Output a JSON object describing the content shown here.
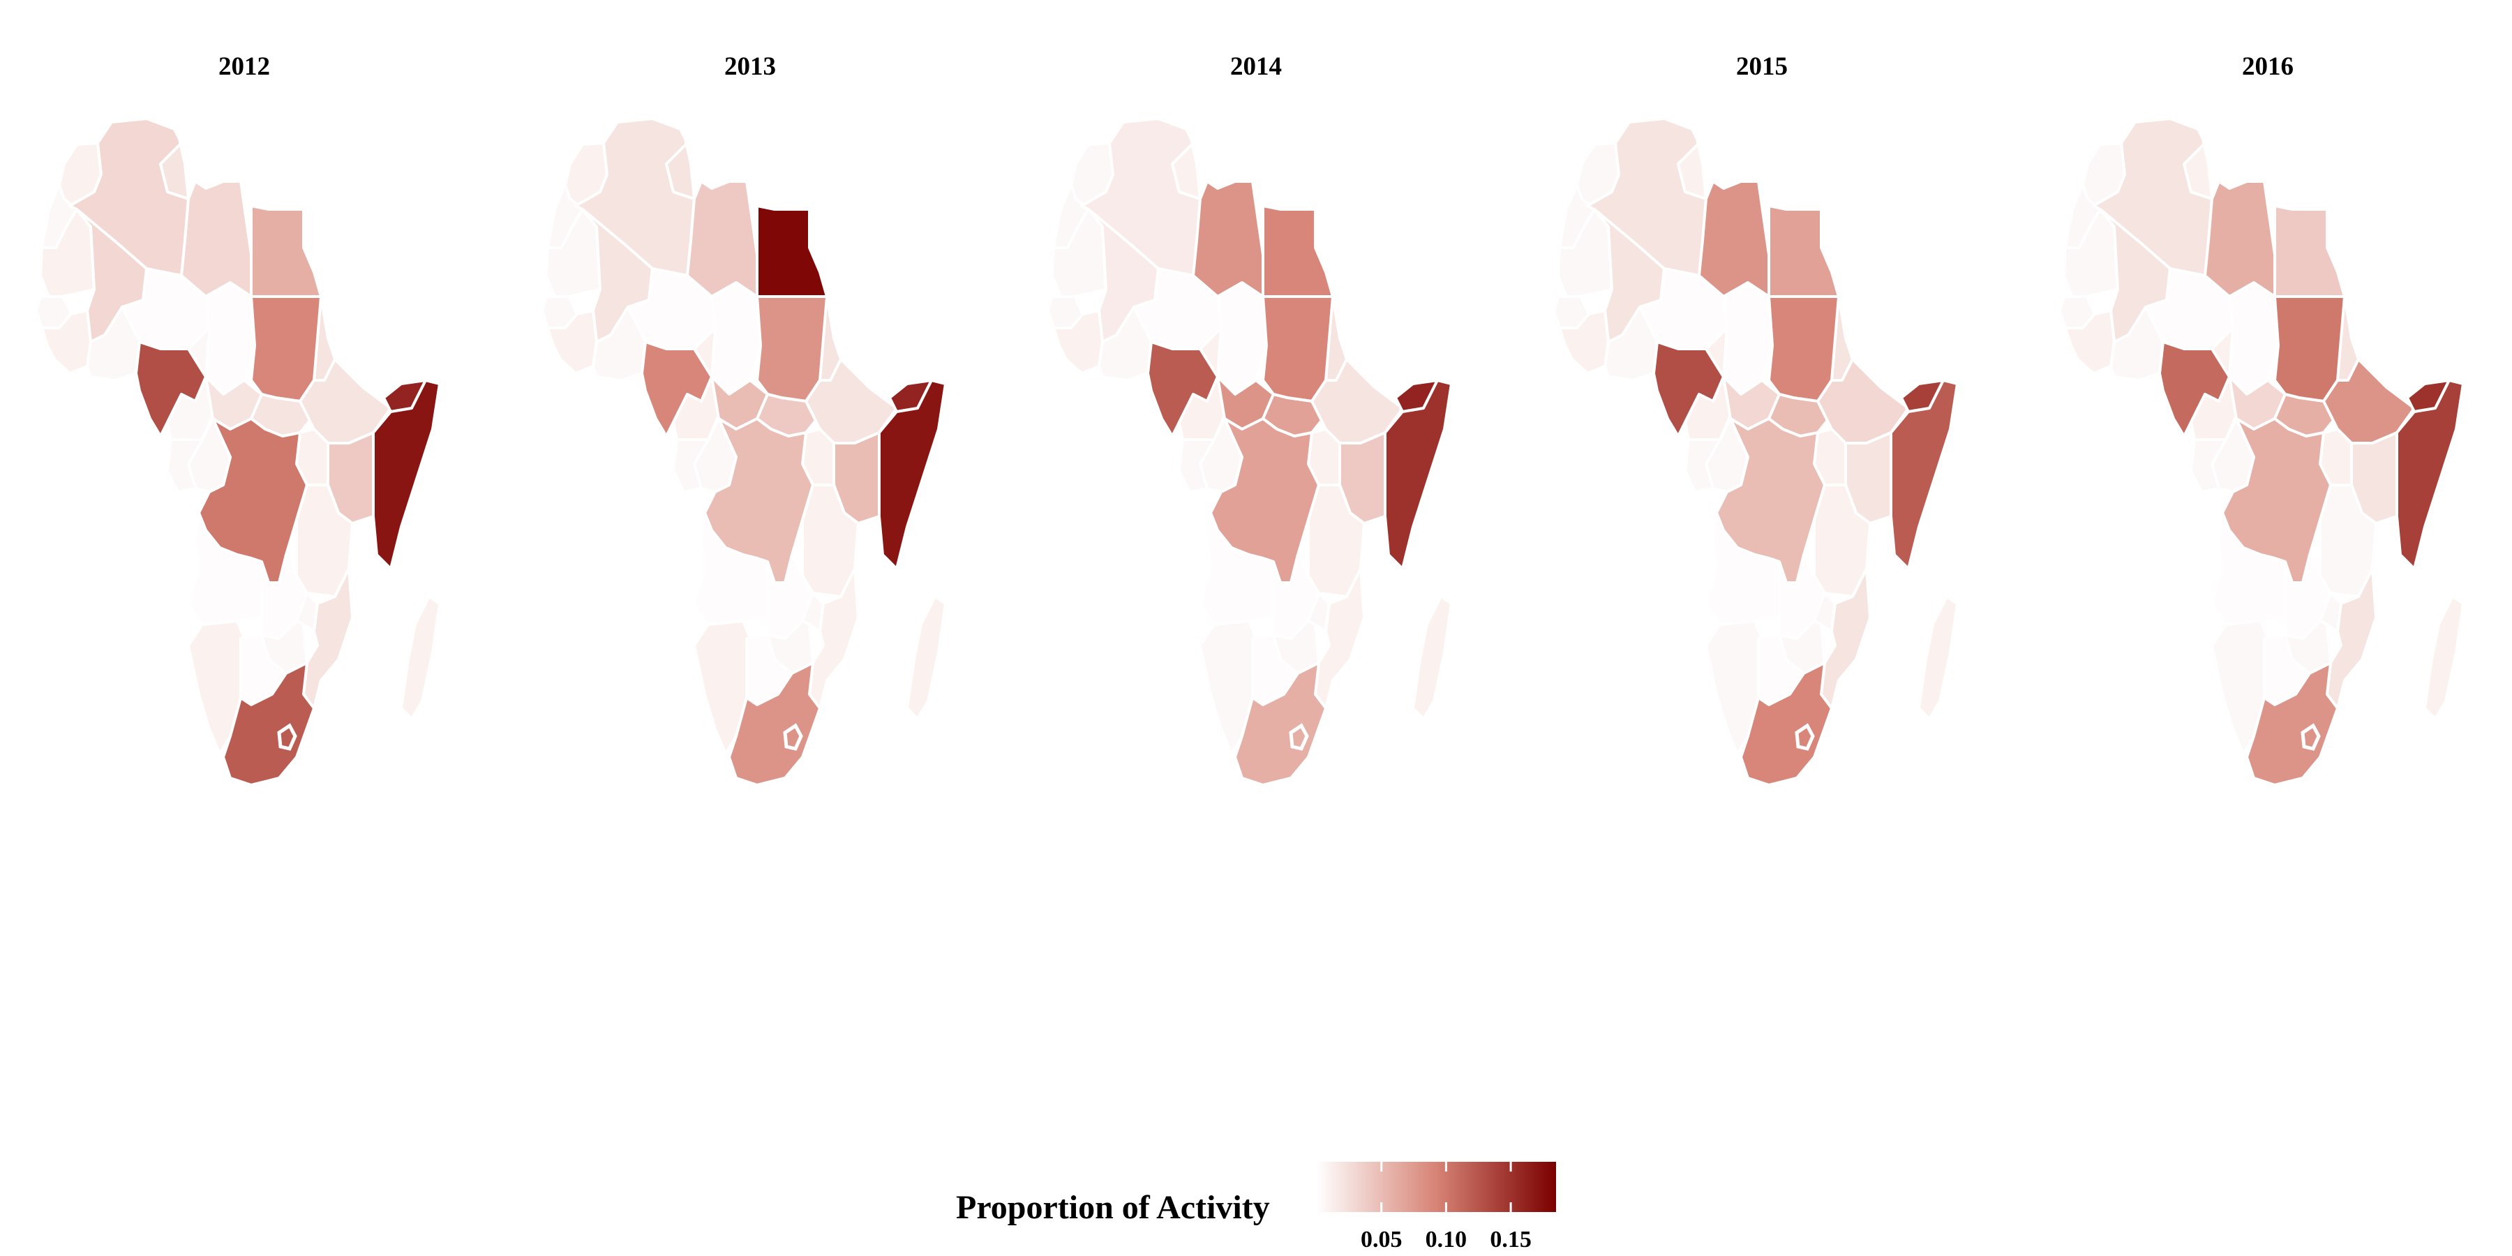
{
  "chart_data": {
    "type": "choropleth",
    "region": "Africa",
    "panels": [
      {
        "title": "2012",
        "values": {
          "morocco": 0.01,
          "western_sahara": 0.005,
          "algeria": 0.03,
          "tunisia": 0.02,
          "libya": 0.03,
          "egypt": 0.06,
          "mauritania": 0.01,
          "mali": 0.03,
          "niger": 0.002,
          "chad": 0.002,
          "sudan": 0.09,
          "senegal": 0.005,
          "west_coast": 0.01,
          "ghana_region": 0.005,
          "nigeria": 0.13,
          "cameroon": 0.005,
          "car": 0.02,
          "south_sudan": 0.02,
          "ethiopia": 0.02,
          "eritrea": 0.02,
          "djibouti": 0.16,
          "somalia": 0.17,
          "kenya": 0.04,
          "uganda": 0.01,
          "drc": 0.1,
          "congo": 0.005,
          "gabon": 0.005,
          "tanzania": 0.01,
          "angola": 0.002,
          "zambia": 0.002,
          "mozambique": 0.02,
          "malawi": 0.005,
          "zimbabwe": 0.005,
          "namibia": 0.01,
          "botswana": 0.002,
          "south_africa": 0.12,
          "madagascar": 0.01
        },
        "highlight": "nigeria"
      },
      {
        "title": "2013",
        "values": {
          "morocco": 0.01,
          "western_sahara": 0.005,
          "algeria": 0.02,
          "tunisia": 0.02,
          "libya": 0.04,
          "egypt": 0.18,
          "mauritania": 0.005,
          "mali": 0.02,
          "niger": 0.002,
          "chad": 0.002,
          "sudan": 0.08,
          "senegal": 0.005,
          "west_coast": 0.01,
          "ghana_region": 0.005,
          "nigeria": 0.09,
          "cameroon": 0.01,
          "car": 0.05,
          "south_sudan": 0.04,
          "ethiopia": 0.02,
          "eritrea": 0.02,
          "djibouti": 0.16,
          "somalia": 0.17,
          "kenya": 0.05,
          "uganda": 0.01,
          "drc": 0.05,
          "congo": 0.005,
          "gabon": 0.005,
          "tanzania": 0.01,
          "angola": 0.002,
          "zambia": 0.002,
          "mozambique": 0.01,
          "malawi": 0.005,
          "zimbabwe": 0.005,
          "namibia": 0.01,
          "botswana": 0.002,
          "south_africa": 0.08,
          "madagascar": 0.01
        },
        "highlight": "egypt"
      },
      {
        "title": "2014",
        "values": {
          "morocco": 0.005,
          "western_sahara": 0.005,
          "algeria": 0.015,
          "tunisia": 0.01,
          "libya": 0.08,
          "egypt": 0.09,
          "mauritania": 0.005,
          "mali": 0.015,
          "niger": 0.002,
          "chad": 0.002,
          "sudan": 0.09,
          "senegal": 0.005,
          "west_coast": 0.01,
          "ghana_region": 0.005,
          "nigeria": 0.12,
          "cameroon": 0.01,
          "car": 0.08,
          "south_sudan": 0.07,
          "ethiopia": 0.02,
          "eritrea": 0.02,
          "djibouti": 0.16,
          "somalia": 0.15,
          "kenya": 0.04,
          "uganda": 0.01,
          "drc": 0.07,
          "congo": 0.005,
          "gabon": 0.005,
          "tanzania": 0.01,
          "angola": 0.002,
          "zambia": 0.002,
          "mozambique": 0.01,
          "malawi": 0.005,
          "zimbabwe": 0.005,
          "namibia": 0.005,
          "botswana": 0.002,
          "south_africa": 0.06,
          "madagascar": 0.01
        },
        "highlight": "nigeria"
      },
      {
        "title": "2015",
        "values": {
          "morocco": 0.005,
          "western_sahara": 0.005,
          "algeria": 0.02,
          "tunisia": 0.01,
          "libya": 0.08,
          "egypt": 0.07,
          "mauritania": 0.005,
          "mali": 0.02,
          "niger": 0.002,
          "chad": 0.002,
          "sudan": 0.09,
          "senegal": 0.005,
          "west_coast": 0.01,
          "ghana_region": 0.005,
          "nigeria": 0.13,
          "cameroon": 0.01,
          "car": 0.03,
          "south_sudan": 0.05,
          "ethiopia": 0.03,
          "eritrea": 0.02,
          "djibouti": 0.14,
          "somalia": 0.12,
          "kenya": 0.02,
          "uganda": 0.01,
          "drc": 0.05,
          "congo": 0.005,
          "gabon": 0.005,
          "tanzania": 0.01,
          "angola": 0.002,
          "zambia": 0.002,
          "mozambique": 0.02,
          "malawi": 0.005,
          "zimbabwe": 0.005,
          "namibia": 0.005,
          "botswana": 0.002,
          "south_africa": 0.09,
          "madagascar": 0.01
        },
        "highlight": "nigeria"
      },
      {
        "title": "2016",
        "values": {
          "morocco": 0.005,
          "western_sahara": 0.005,
          "algeria": 0.02,
          "tunisia": 0.01,
          "libya": 0.06,
          "egypt": 0.04,
          "mauritania": 0.005,
          "mali": 0.02,
          "niger": 0.002,
          "chad": 0.002,
          "sudan": 0.1,
          "senegal": 0.005,
          "west_coast": 0.01,
          "ghana_region": 0.005,
          "nigeria": 0.11,
          "cameroon": 0.01,
          "car": 0.03,
          "south_sudan": 0.06,
          "ethiopia": 0.08,
          "eritrea": 0.02,
          "djibouti": 0.15,
          "somalia": 0.14,
          "kenya": 0.02,
          "uganda": 0.01,
          "drc": 0.06,
          "congo": 0.005,
          "gabon": 0.005,
          "tanzania": 0.005,
          "angola": 0.002,
          "zambia": 0.002,
          "mozambique": 0.02,
          "malawi": 0.005,
          "zimbabwe": 0.005,
          "namibia": 0.005,
          "botswana": 0.002,
          "south_africa": 0.08,
          "madagascar": 0.01
        },
        "highlight": "nigeria"
      }
    ],
    "legend": {
      "title": "Proportion of Activity",
      "min": 0,
      "max": 0.185,
      "ticks": [
        0.05,
        0.1,
        0.15
      ],
      "tick_labels": [
        "0.05",
        "0.10",
        "0.15"
      ],
      "colors": [
        "#ffffff",
        "#d78375",
        "#7a0000"
      ]
    }
  }
}
